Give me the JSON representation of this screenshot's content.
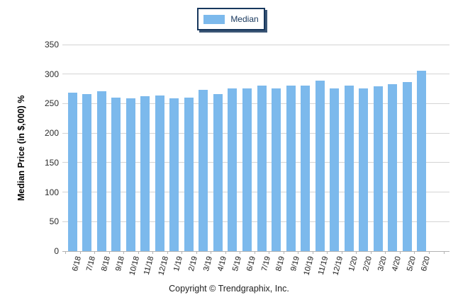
{
  "chart_data": {
    "type": "bar",
    "title": "",
    "xlabel": "",
    "ylabel": "Median Price (in $,000) %",
    "categories": [
      "6/18",
      "7/18",
      "8/18",
      "9/18",
      "10/18",
      "11/18",
      "12/18",
      "1/19",
      "2/19",
      "3/19",
      "4/19",
      "5/19",
      "6/19",
      "7/19",
      "8/19",
      "9/19",
      "10/19",
      "11/19",
      "12/19",
      "1/20",
      "2/20",
      "3/20",
      "4/20",
      "5/20",
      "6/20"
    ],
    "values": [
      268,
      266,
      271,
      260,
      259,
      262,
      264,
      259,
      260,
      273,
      266,
      276,
      276,
      280,
      276,
      280,
      280,
      289,
      276,
      281,
      276,
      279,
      283,
      286,
      306
    ],
    "ylim": [
      0,
      350
    ],
    "yticks": [
      0,
      50,
      100,
      150,
      200,
      250,
      300,
      350
    ],
    "grid": "horizontal",
    "legend": {
      "position": "top-center",
      "entries": [
        {
          "label": "Median",
          "color": "#7cb9ec"
        }
      ]
    }
  },
  "colors": {
    "bar": "#7cb9ec",
    "gridline": "#d4d4d4",
    "axis": "#b3b3b3",
    "legend_border": "#17375d",
    "text": "#1a1a1a"
  },
  "footer": {
    "copyright": "Copyright © Trendgraphix, Inc."
  }
}
